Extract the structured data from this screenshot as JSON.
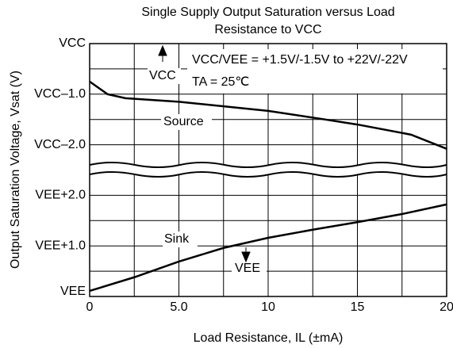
{
  "chart_data": {
    "type": "line",
    "title": [
      "Single Supply Output Saturation versus Load",
      "Resistance to VCC"
    ],
    "x_label": "Load Resistance, IL (±mA)",
    "y_label": "Output Saturation Voltage, Vsat (V)",
    "xlim": [
      0,
      20
    ],
    "xticks": [
      0,
      {
        "value": 5,
        "label": "5.0"
      },
      10,
      15,
      20
    ],
    "ylim": [
      0,
      5
    ],
    "yticks": [
      {
        "value": 0,
        "label": "VEE"
      },
      {
        "value": 1,
        "label": "VEE+1.0"
      },
      {
        "value": 2,
        "label": "VEE+2.0"
      },
      {
        "value": 3,
        "label": "VCC–2.0"
      },
      {
        "value": 4,
        "label": "VCC–1.0"
      },
      {
        "value": 5,
        "label": "VCC"
      }
    ],
    "grid": true,
    "annotations": [
      "VCC/VEE = +1.5V/-1.5V to +22V/-22V",
      "TA = 25℃",
      "Source",
      "Sink",
      "VCC",
      "VEE"
    ],
    "series": [
      {
        "name": "Source",
        "color": "#000000",
        "x": [
          0,
          1,
          2,
          5,
          10,
          13,
          15,
          18,
          20
        ],
        "values": [
          4.25,
          4.0,
          3.92,
          3.85,
          3.67,
          3.51,
          3.4,
          3.2,
          2.92
        ]
      },
      {
        "name": "Sink",
        "color": "#000000",
        "x": [
          0,
          2.5,
          5,
          7.5,
          10,
          12.5,
          15,
          17.5,
          20
        ],
        "values": [
          0.11,
          0.38,
          0.69,
          0.96,
          1.16,
          1.32,
          1.47,
          1.63,
          1.82
        ]
      }
    ]
  }
}
